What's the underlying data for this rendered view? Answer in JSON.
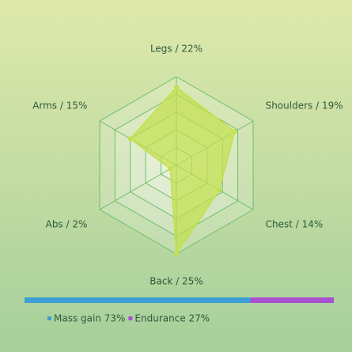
{
  "chart_data": [
    {
      "type": "radar",
      "categories": [
        "Legs / 22%",
        "Shoulders / 19%",
        "Chest / 14%",
        "Back / 25%",
        "Abs / 2%",
        "Arms / 15%"
      ],
      "values": [
        22,
        19,
        14,
        25,
        2,
        15
      ],
      "color": "#c3e04a",
      "rlim": [
        0,
        25
      ],
      "rticks": [
        5,
        10,
        15,
        20,
        25
      ],
      "grid": true
    },
    {
      "type": "stacked-bar",
      "series": [
        {
          "name": "Mass gain 73%",
          "color": "#3b9ed6",
          "values": [
            73
          ]
        },
        {
          "name": "Endurance 27%",
          "color": "#a84fd2",
          "values": [
            27
          ]
        }
      ],
      "xlim": [
        0,
        100
      ]
    }
  ]
}
